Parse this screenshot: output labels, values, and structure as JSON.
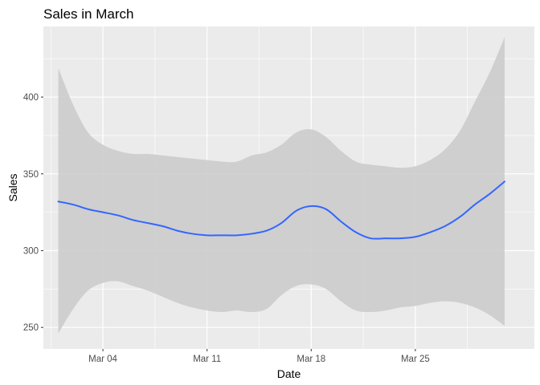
{
  "chart_data": {
    "type": "line",
    "title": "Sales in March",
    "xlabel": "Date",
    "ylabel": "Sales",
    "x_ticks": [
      "Mar 04",
      "Mar 11",
      "Mar 18",
      "Mar 25"
    ],
    "x_tick_values": [
      "2023-03-04",
      "2023-03-11",
      "2023-03-18",
      "2023-03-25"
    ],
    "y_ticks": [
      250,
      300,
      350,
      400
    ],
    "xlim": [
      "2023-02-28",
      "2023-04-02"
    ],
    "ylim": [
      236,
      446
    ],
    "grid": true,
    "background": "#ebebeb",
    "series": [
      {
        "type": "smooth",
        "color": "#3366ff",
        "ribbon_color": "#cccccc",
        "points": [
          {
            "x": "2023-03-01",
            "y": 332,
            "lo": 246,
            "hi": 419
          },
          {
            "x": "2023-03-02",
            "y": 330,
            "lo": 262,
            "hi": 395
          },
          {
            "x": "2023-03-03",
            "y": 327,
            "lo": 274,
            "hi": 377
          },
          {
            "x": "2023-03-04",
            "y": 325,
            "lo": 279,
            "hi": 369
          },
          {
            "x": "2023-03-05",
            "y": 323,
            "lo": 280,
            "hi": 365
          },
          {
            "x": "2023-03-06",
            "y": 320,
            "lo": 277,
            "hi": 363
          },
          {
            "x": "2023-03-07",
            "y": 318,
            "lo": 274,
            "hi": 363
          },
          {
            "x": "2023-03-08",
            "y": 316,
            "lo": 270,
            "hi": 362
          },
          {
            "x": "2023-03-09",
            "y": 313,
            "lo": 266,
            "hi": 361
          },
          {
            "x": "2023-03-10",
            "y": 311,
            "lo": 263,
            "hi": 360
          },
          {
            "x": "2023-03-11",
            "y": 310,
            "lo": 261,
            "hi": 359
          },
          {
            "x": "2023-03-12",
            "y": 310,
            "lo": 260,
            "hi": 358
          },
          {
            "x": "2023-03-13",
            "y": 310,
            "lo": 261,
            "hi": 358
          },
          {
            "x": "2023-03-14",
            "y": 311,
            "lo": 260,
            "hi": 362
          },
          {
            "x": "2023-03-15",
            "y": 313,
            "lo": 262,
            "hi": 364
          },
          {
            "x": "2023-03-16",
            "y": 318,
            "lo": 271,
            "hi": 369
          },
          {
            "x": "2023-03-17",
            "y": 326,
            "lo": 277,
            "hi": 377
          },
          {
            "x": "2023-03-18",
            "y": 329,
            "lo": 278,
            "hi": 379
          },
          {
            "x": "2023-03-19",
            "y": 327,
            "lo": 275,
            "hi": 374
          },
          {
            "x": "2023-03-20",
            "y": 319,
            "lo": 267,
            "hi": 365
          },
          {
            "x": "2023-03-21",
            "y": 312,
            "lo": 261,
            "hi": 358
          },
          {
            "x": "2023-03-22",
            "y": 308,
            "lo": 260,
            "hi": 356
          },
          {
            "x": "2023-03-23",
            "y": 308,
            "lo": 261,
            "hi": 355
          },
          {
            "x": "2023-03-24",
            "y": 308,
            "lo": 263,
            "hi": 354
          },
          {
            "x": "2023-03-25",
            "y": 309,
            "lo": 264,
            "hi": 355
          },
          {
            "x": "2023-03-26",
            "y": 312,
            "lo": 266,
            "hi": 359
          },
          {
            "x": "2023-03-27",
            "y": 316,
            "lo": 267,
            "hi": 366
          },
          {
            "x": "2023-03-28",
            "y": 322,
            "lo": 266,
            "hi": 378
          },
          {
            "x": "2023-03-29",
            "y": 330,
            "lo": 263,
            "hi": 397
          },
          {
            "x": "2023-03-30",
            "y": 337,
            "lo": 258,
            "hi": 416
          },
          {
            "x": "2023-03-31",
            "y": 345,
            "lo": 251,
            "hi": 439
          }
        ]
      }
    ]
  }
}
